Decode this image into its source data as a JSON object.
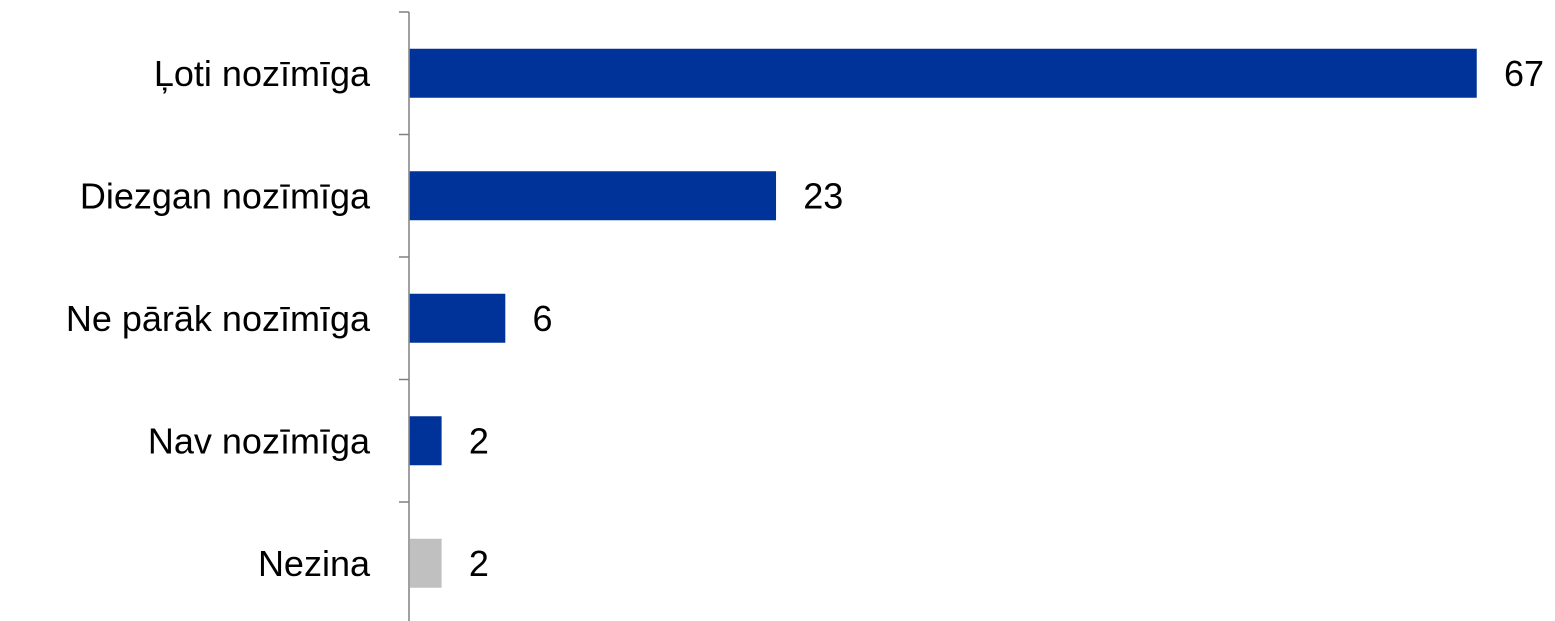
{
  "chart_data": {
    "type": "bar",
    "orientation": "horizontal",
    "categories": [
      "Ļoti nozīmīga",
      "Diezgan nozīmīga",
      "Ne pārāk nozīmīga",
      "Nav nozīmīga",
      "Nezina"
    ],
    "values": [
      67,
      23,
      6,
      2,
      2
    ],
    "value_labels": [
      "67",
      "23",
      "6",
      "2",
      "2"
    ],
    "bar_colors": [
      "#003399",
      "#003399",
      "#003399",
      "#003399",
      "#c0c0c0"
    ],
    "xlim": [
      0,
      67
    ],
    "grid": false,
    "legend": "none",
    "axis_color": "#808080"
  }
}
